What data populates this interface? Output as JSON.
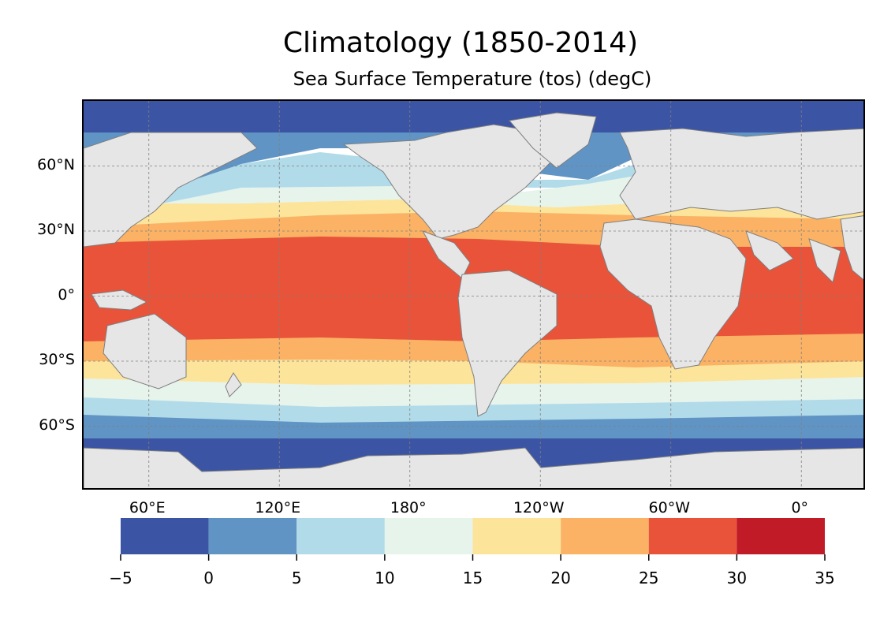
{
  "title": "Climatology (1850-2014)",
  "subtitle": "Sea Surface Temperature (tos) (degC)",
  "map": {
    "projection": "PlateCarree",
    "central_longitude": -150,
    "land_color": "#e6e6e6",
    "coastline_color": "#7f7f7f",
    "gridlines": true,
    "lat_ticks": [
      {
        "value": 60,
        "label": "60°N"
      },
      {
        "value": 30,
        "label": "30°N"
      },
      {
        "value": 0,
        "label": "0°"
      },
      {
        "value": -30,
        "label": "30°S"
      },
      {
        "value": -60,
        "label": "60°S"
      }
    ],
    "lon_ticks": [
      {
        "value": 120,
        "label": "120°E"
      },
      {
        "value": 180,
        "label": "180°"
      },
      {
        "value": -120,
        "label": "120°W"
      },
      {
        "value": -60,
        "label": "60°W"
      },
      {
        "value": 0,
        "label": "0°"
      },
      {
        "value": 60,
        "label": "60°E"
      }
    ]
  },
  "colorbar": {
    "levels": [
      -5,
      0,
      5,
      10,
      15,
      20,
      25,
      30,
      35
    ],
    "tick_labels": [
      "−5",
      "0",
      "5",
      "10",
      "15",
      "20",
      "25",
      "30",
      "35"
    ],
    "colors": [
      "#3b54a4",
      "#5f94c5",
      "#b2dbea",
      "#e7f4ec",
      "#fde49b",
      "#fbb264",
      "#e8533a",
      "#c01b27"
    ]
  }
}
